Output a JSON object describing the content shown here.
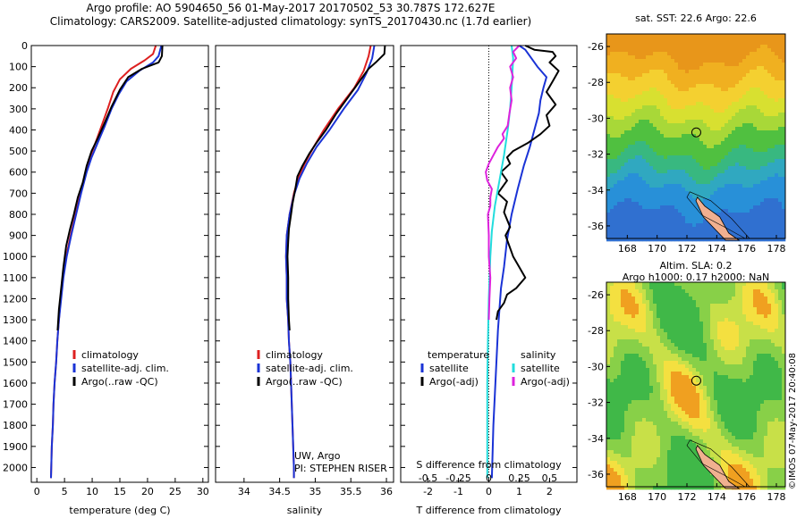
{
  "header": {
    "line1": "Argo profile: AO 5904650_56 01-May-2017 20170502_53 30.787S 172.627E",
    "line2": "Climatology: CARS2009. Satellite-adjusted climatology: synTS_20170430.nc (1.7d earlier)"
  },
  "colors": {
    "climatology": "#dd2020",
    "satellite": "#1a33d6",
    "argo": "#000000",
    "sal_satellite": "#22dddd",
    "sal_argo": "#dd22dd"
  },
  "maps": {
    "sst_title": "sat. SST: 22.6 Argo: 22.6",
    "sla_title_1": "Altim. SLA: 0.2",
    "sla_title_2": "Argo h1000: 0.17 h2000: NaN",
    "lat_ticks": [
      "-26",
      "-28",
      "-30",
      "-32",
      "-34",
      "-36"
    ],
    "lon_ticks": [
      "168",
      "170",
      "172",
      "174",
      "176",
      "178"
    ],
    "float_marker": "Argo float position circle"
  },
  "stamp": "©IMOS 07-May-2017 20:40:08",
  "chart_data": [
    {
      "type": "line",
      "xlabel": "temperature (deg C)",
      "ylabel": "",
      "xlim": [
        -1,
        31
      ],
      "ylim": [
        2070,
        0
      ],
      "x_ticks": [
        "0",
        "5",
        "10",
        "15",
        "20",
        "25",
        "30"
      ],
      "y_ticks": [
        "0",
        "100",
        "200",
        "300",
        "400",
        "500",
        "600",
        "700",
        "800",
        "900",
        "1000",
        "1100",
        "1200",
        "1300",
        "1400",
        "1500",
        "1600",
        "1700",
        "1800",
        "1900",
        "2000"
      ],
      "legend": [
        "climatology",
        "satellite-adj. clim.",
        "Argo(..raw -QC)"
      ],
      "legend_position": "lower-center",
      "series": [
        {
          "name": "climatology",
          "color": "#dd2020",
          "points": [
            [
              21.5,
              0
            ],
            [
              21,
              40
            ],
            [
              19.5,
              70
            ],
            [
              17,
              110
            ],
            [
              15,
              160
            ],
            [
              13.8,
              220
            ],
            [
              12.8,
              300
            ],
            [
              11.7,
              380
            ],
            [
              10.6,
              460
            ],
            [
              9.6,
              530
            ],
            [
              8.8,
              600
            ],
            [
              7.9,
              700
            ],
            [
              7,
              800
            ],
            [
              6.1,
              900
            ],
            [
              5.3,
              1000
            ],
            [
              4.7,
              1100
            ],
            [
              4.3,
              1200
            ],
            [
              4,
              1300
            ],
            [
              3.7,
              1400
            ],
            [
              3.5,
              1500
            ],
            [
              3.2,
              1600
            ],
            [
              3,
              1700
            ],
            [
              2.9,
              1800
            ],
            [
              2.7,
              1900
            ],
            [
              2.6,
              2000
            ],
            [
              2.55,
              2050
            ]
          ]
        },
        {
          "name": "satellite-adj. clim.",
          "color": "#1a33d6",
          "points": [
            [
              22.5,
              0
            ],
            [
              22,
              50
            ],
            [
              21,
              80
            ],
            [
              18.5,
              120
            ],
            [
              16.2,
              170
            ],
            [
              14.8,
              230
            ],
            [
              13.5,
              300
            ],
            [
              12.3,
              380
            ],
            [
              11,
              460
            ],
            [
              9.9,
              530
            ],
            [
              9,
              600
            ],
            [
              8,
              700
            ],
            [
              7.1,
              800
            ],
            [
              6.2,
              900
            ],
            [
              5.4,
              1000
            ],
            [
              4.8,
              1100
            ],
            [
              4.4,
              1200
            ],
            [
              4,
              1300
            ],
            [
              3.7,
              1400
            ],
            [
              3.5,
              1500
            ],
            [
              3.2,
              1600
            ],
            [
              3,
              1700
            ],
            [
              2.9,
              1800
            ],
            [
              2.7,
              1900
            ],
            [
              2.6,
              2000
            ],
            [
              2.55,
              2050
            ]
          ]
        },
        {
          "name": "Argo(..raw -QC)",
          "color": "#000000",
          "points": [
            [
              22.7,
              0
            ],
            [
              22.6,
              50
            ],
            [
              22,
              80
            ],
            [
              19,
              110
            ],
            [
              16.5,
              150
            ],
            [
              15,
              210
            ],
            [
              13.5,
              290
            ],
            [
              12.2,
              370
            ],
            [
              11,
              440
            ],
            [
              9.9,
              500
            ],
            [
              9,
              570
            ],
            [
              8.3,
              650
            ],
            [
              7.4,
              720
            ],
            [
              6.7,
              800
            ],
            [
              6,
              870
            ],
            [
              5.3,
              950
            ],
            [
              4.8,
              1050
            ],
            [
              4.4,
              1150
            ],
            [
              4,
              1250
            ],
            [
              3.75,
              1350
            ]
          ]
        }
      ]
    },
    {
      "type": "line",
      "xlabel": "salinity",
      "ylabel": "",
      "xlim": [
        33.6,
        36.1
      ],
      "ylim": [
        2070,
        0
      ],
      "x_ticks": [
        "34",
        "34.5",
        "35",
        "35.5",
        "36"
      ],
      "legend": [
        "climatology",
        "satellite-adj. clim.",
        "Argo(..raw -QC)"
      ],
      "legend_position": "lower-center",
      "annotation_1": "UW, Argo",
      "annotation_2": "PI: STEPHEN RISER",
      "series": [
        {
          "name": "climatology",
          "color": "#dd2020",
          "points": [
            [
              35.78,
              0
            ],
            [
              35.75,
              50
            ],
            [
              35.68,
              120
            ],
            [
              35.55,
              200
            ],
            [
              35.32,
              300
            ],
            [
              35.12,
              400
            ],
            [
              34.98,
              480
            ],
            [
              34.85,
              560
            ],
            [
              34.77,
              620
            ],
            [
              34.7,
              700
            ],
            [
              34.64,
              800
            ],
            [
              34.6,
              900
            ],
            [
              34.59,
              1000
            ],
            [
              34.6,
              1100
            ],
            [
              34.6,
              1200
            ],
            [
              34.62,
              1300
            ],
            [
              34.63,
              1400
            ],
            [
              34.65,
              1500
            ],
            [
              34.66,
              1600
            ],
            [
              34.67,
              1700
            ],
            [
              34.68,
              1800
            ],
            [
              34.69,
              1900
            ],
            [
              34.7,
              2000
            ],
            [
              34.7,
              2050
            ]
          ]
        },
        {
          "name": "satellite-adj. clim.",
          "color": "#1a33d6",
          "points": [
            [
              35.83,
              0
            ],
            [
              35.8,
              60
            ],
            [
              35.72,
              130
            ],
            [
              35.6,
              210
            ],
            [
              35.4,
              300
            ],
            [
              35.2,
              400
            ],
            [
              35.02,
              480
            ],
            [
              34.88,
              560
            ],
            [
              34.78,
              630
            ],
            [
              34.7,
              710
            ],
            [
              34.64,
              800
            ],
            [
              34.6,
              900
            ],
            [
              34.59,
              1000
            ],
            [
              34.6,
              1100
            ],
            [
              34.6,
              1200
            ],
            [
              34.62,
              1300
            ],
            [
              34.63,
              1400
            ],
            [
              34.65,
              1500
            ],
            [
              34.66,
              1600
            ],
            [
              34.67,
              1700
            ],
            [
              34.68,
              1800
            ],
            [
              34.69,
              1900
            ],
            [
              34.7,
              2000
            ],
            [
              34.7,
              2050
            ]
          ]
        },
        {
          "name": "Argo(..raw -QC)",
          "color": "#000000",
          "points": [
            [
              35.98,
              0
            ],
            [
              35.97,
              40
            ],
            [
              35.85,
              80
            ],
            [
              35.75,
              110
            ],
            [
              35.6,
              180
            ],
            [
              35.45,
              250
            ],
            [
              35.3,
              320
            ],
            [
              35.15,
              400
            ],
            [
              35.02,
              460
            ],
            [
              34.92,
              510
            ],
            [
              34.82,
              570
            ],
            [
              34.75,
              620
            ],
            [
              34.72,
              680
            ],
            [
              34.68,
              750
            ],
            [
              34.66,
              800
            ],
            [
              34.63,
              870
            ],
            [
              34.62,
              930
            ],
            [
              34.61,
              1000
            ],
            [
              34.62,
              1100
            ],
            [
              34.62,
              1200
            ],
            [
              34.63,
              1300
            ],
            [
              34.64,
              1350
            ]
          ]
        }
      ]
    },
    {
      "type": "line",
      "xlabel": "T difference from climatology",
      "xlabel_top": "S difference from climatology",
      "ylabel": "",
      "xlim": [
        -2.9,
        2.9
      ],
      "ylim": [
        2070,
        0
      ],
      "x_ticks": [
        "-2",
        "-1",
        "0",
        "1",
        "2"
      ],
      "x_ticks_top": [
        "-0.5",
        "-0.25",
        "0",
        "0.25",
        "0.5"
      ],
      "legend_temperature_title": "temperature",
      "legend_salinity_title": "salinity",
      "legend": [
        "satellite",
        "Argo(-adj)",
        "satellite",
        "Argo(-adj)"
      ],
      "legend_position": "lower-center",
      "series": [
        {
          "name": "satellite",
          "color": "#1a33d6",
          "points": [
            [
              1,
              0
            ],
            [
              1.2,
              20
            ],
            [
              1.4,
              60
            ],
            [
              1.6,
              100
            ],
            [
              1.9,
              150
            ],
            [
              1.8,
              200
            ],
            [
              1.7,
              260
            ],
            [
              1.65,
              320
            ],
            [
              1.5,
              400
            ],
            [
              1.35,
              480
            ],
            [
              1.15,
              570
            ],
            [
              0.95,
              680
            ],
            [
              0.75,
              800
            ],
            [
              0.6,
              920
            ],
            [
              0.5,
              1050
            ],
            [
              0.4,
              1150
            ],
            [
              0.35,
              1250
            ],
            [
              0.3,
              1350
            ],
            [
              0.25,
              1500
            ],
            [
              0.2,
              1650
            ],
            [
              0.15,
              1800
            ],
            [
              0.12,
              1950
            ],
            [
              0.1,
              2050
            ]
          ]
        },
        {
          "name": "Argo(-adj)",
          "color": "#000000",
          "points": [
            [
              1.2,
              0
            ],
            [
              1.5,
              20
            ],
            [
              2.1,
              30
            ],
            [
              2.2,
              50
            ],
            [
              2,
              80
            ],
            [
              2.3,
              120
            ],
            [
              2.1,
              170
            ],
            [
              1.9,
              220
            ],
            [
              2.2,
              280
            ],
            [
              1.9,
              330
            ],
            [
              2,
              380
            ],
            [
              1.7,
              420
            ],
            [
              1.3,
              460
            ],
            [
              0.8,
              500
            ],
            [
              0.6,
              530
            ],
            [
              0.7,
              560
            ],
            [
              0.4,
              600
            ],
            [
              0.6,
              640
            ],
            [
              0.3,
              700
            ],
            [
              0.6,
              740
            ],
            [
              0.5,
              790
            ],
            [
              0.7,
              860
            ],
            [
              0.55,
              900
            ],
            [
              0.8,
              1000
            ],
            [
              1,
              1050
            ],
            [
              1.2,
              1100
            ],
            [
              0.9,
              1150
            ],
            [
              0.6,
              1180
            ],
            [
              0.5,
              1220
            ],
            [
              0.3,
              1260
            ],
            [
              0.25,
              1300
            ]
          ]
        },
        {
          "name": "satellite",
          "color": "#22dddd",
          "points": [
            [
              0.75,
              0
            ],
            [
              0.8,
              60
            ],
            [
              0.78,
              120
            ],
            [
              0.75,
              200
            ],
            [
              0.7,
              300
            ],
            [
              0.62,
              400
            ],
            [
              0.5,
              520
            ],
            [
              0.35,
              640
            ],
            [
              0.2,
              760
            ],
            [
              0.1,
              880
            ],
            [
              0.05,
              1000
            ],
            [
              0,
              1200
            ],
            [
              -0.03,
              1400
            ],
            [
              -0.05,
              1600
            ],
            [
              -0.05,
              1800
            ],
            [
              -0.05,
              2050
            ]
          ]
        },
        {
          "name": "Argo(-adj)",
          "color": "#dd22dd",
          "points": [
            [
              1,
              0
            ],
            [
              0.8,
              30
            ],
            [
              0.9,
              60
            ],
            [
              0.7,
              100
            ],
            [
              0.8,
              150
            ],
            [
              0.7,
              200
            ],
            [
              0.75,
              260
            ],
            [
              0.68,
              320
            ],
            [
              0.62,
              380
            ],
            [
              0.45,
              420
            ],
            [
              0.5,
              440
            ],
            [
              0.3,
              480
            ],
            [
              0.15,
              520
            ],
            [
              0,
              560
            ],
            [
              -0.1,
              600
            ],
            [
              -0.05,
              640
            ],
            [
              0.1,
              680
            ],
            [
              0.05,
              720
            ],
            [
              0.05,
              760
            ],
            [
              -0.03,
              800
            ],
            [
              0,
              900
            ],
            [
              0,
              1000
            ],
            [
              0.05,
              1100
            ],
            [
              0.02,
              1200
            ],
            [
              0,
              1300
            ]
          ]
        }
      ]
    }
  ]
}
